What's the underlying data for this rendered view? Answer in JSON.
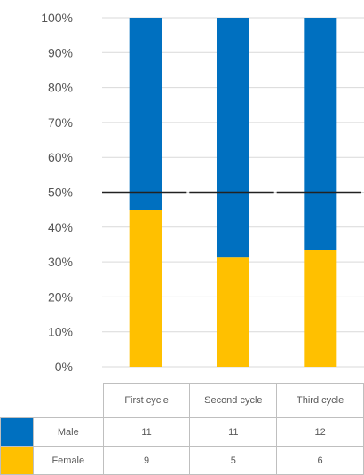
{
  "chart_data": {
    "type": "bar",
    "stacked": true,
    "normalized_percent": true,
    "categories": [
      "First cycle",
      "Second cycle",
      "Third cycle"
    ],
    "series": [
      {
        "name": "Male",
        "values": [
          11,
          11,
          12
        ],
        "color": "#0070C0"
      },
      {
        "name": "Female",
        "values": [
          9,
          5,
          6
        ],
        "color": "#FFC000"
      }
    ],
    "y_ticks": [
      "0%",
      "10%",
      "20%",
      "30%",
      "40%",
      "50%",
      "60%",
      "70%",
      "80%",
      "90%",
      "100%"
    ],
    "ylim": [
      0,
      100
    ],
    "reference_line": {
      "value": 50,
      "color": "#222222"
    },
    "grid": true,
    "legend": "table-below"
  }
}
